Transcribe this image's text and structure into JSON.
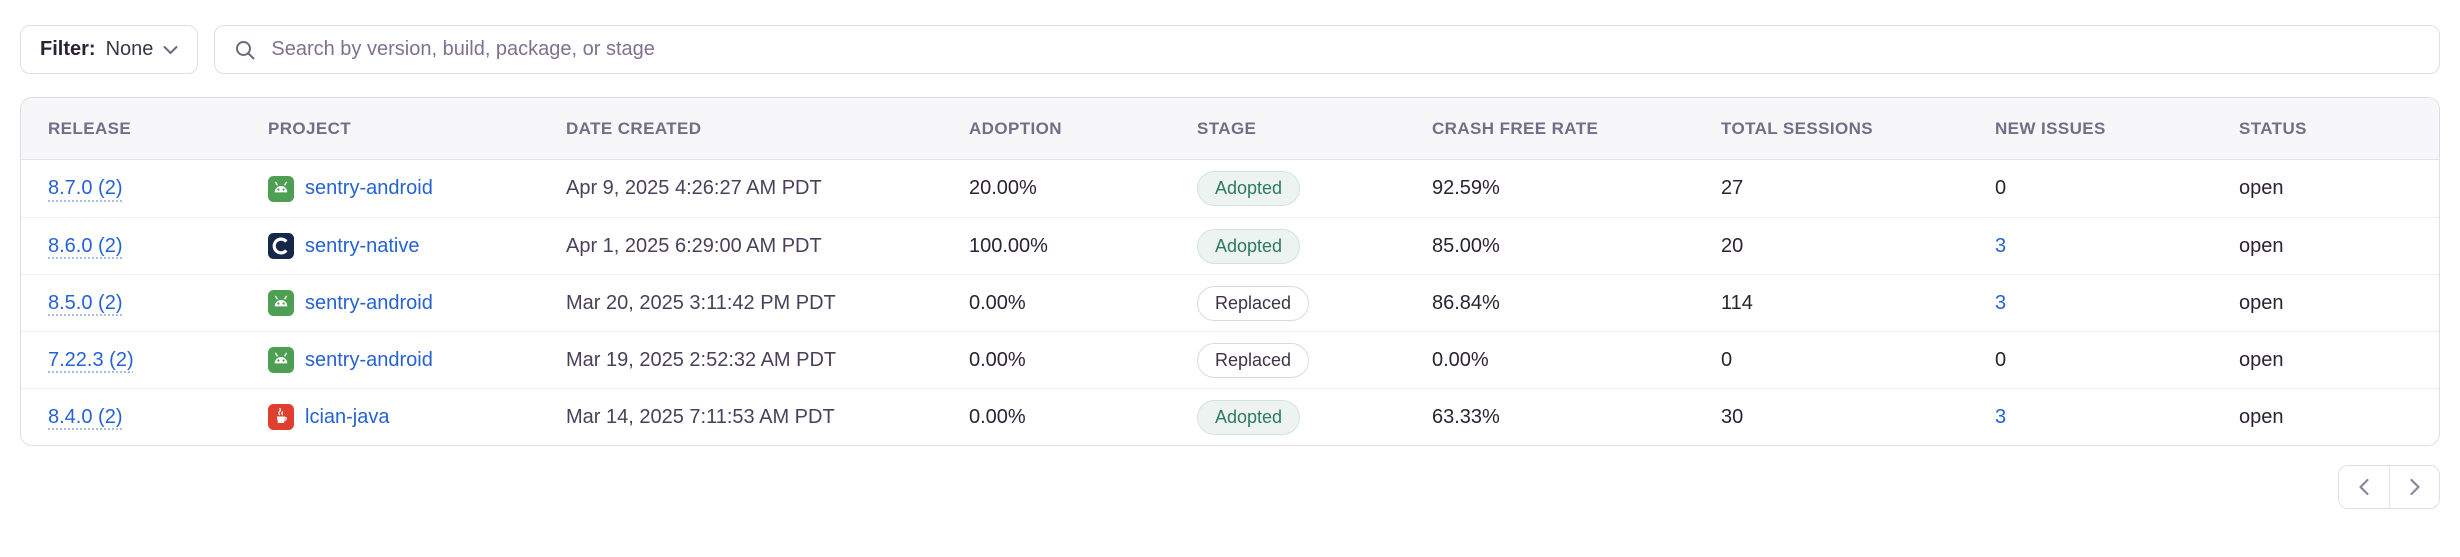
{
  "filter": {
    "label": "Filter:",
    "value": "None"
  },
  "search": {
    "placeholder": "Search by version, build, package, or stage"
  },
  "table": {
    "columns": [
      {
        "key": "release",
        "label": "Release"
      },
      {
        "key": "project",
        "label": "Project"
      },
      {
        "key": "date_created",
        "label": "Date Created"
      },
      {
        "key": "adoption",
        "label": "Adoption"
      },
      {
        "key": "stage",
        "label": "Stage"
      },
      {
        "key": "crash_free_rate",
        "label": "Crash Free Rate"
      },
      {
        "key": "total_sessions",
        "label": "Total Sessions"
      },
      {
        "key": "new_issues",
        "label": "New Issues"
      },
      {
        "key": "status",
        "label": "Status"
      }
    ],
    "rows": [
      {
        "release": "8.7.0 (2)",
        "project": "sentry-android",
        "platform": "android",
        "date_created": "Apr 9, 2025 4:26:27 AM PDT",
        "adoption": "20.00%",
        "stage": "Adopted",
        "crash_free_rate": "92.59%",
        "total_sessions": "27",
        "new_issues": "0",
        "new_issues_is_link": false,
        "status": "open"
      },
      {
        "release": "8.6.0 (2)",
        "project": "sentry-native",
        "platform": "c",
        "date_created": "Apr 1, 2025 6:29:00 AM PDT",
        "adoption": "100.00%",
        "stage": "Adopted",
        "crash_free_rate": "85.00%",
        "total_sessions": "20",
        "new_issues": "3",
        "new_issues_is_link": true,
        "status": "open"
      },
      {
        "release": "8.5.0 (2)",
        "project": "sentry-android",
        "platform": "android",
        "date_created": "Mar 20, 2025 3:11:42 PM PDT",
        "adoption": "0.00%",
        "stage": "Replaced",
        "crash_free_rate": "86.84%",
        "total_sessions": "114",
        "new_issues": "3",
        "new_issues_is_link": true,
        "status": "open"
      },
      {
        "release": "7.22.3 (2)",
        "project": "sentry-android",
        "platform": "android",
        "date_created": "Mar 19, 2025 2:52:32 AM PDT",
        "adoption": "0.00%",
        "stage": "Replaced",
        "crash_free_rate": "0.00%",
        "total_sessions": "0",
        "new_issues": "0",
        "new_issues_is_link": false,
        "status": "open"
      },
      {
        "release": "8.4.0 (2)",
        "project": "lcian-java",
        "platform": "java",
        "date_created": "Mar 14, 2025 7:11:53 AM PDT",
        "adoption": "0.00%",
        "stage": "Adopted",
        "crash_free_rate": "63.33%",
        "total_sessions": "30",
        "new_issues": "3",
        "new_issues_is_link": true,
        "status": "open"
      }
    ]
  },
  "pagination": {
    "previous_icon": "chevron-left",
    "next_icon": "chevron-right"
  },
  "colors": {
    "link_blue": "#2562d4",
    "adopted_green": "#2d7a5e",
    "android_green": "#4e9e53",
    "c_navy": "#16284a",
    "java_red": "#e03e2f",
    "header_bg": "#f7f6f9",
    "border": "#e0dce4"
  }
}
